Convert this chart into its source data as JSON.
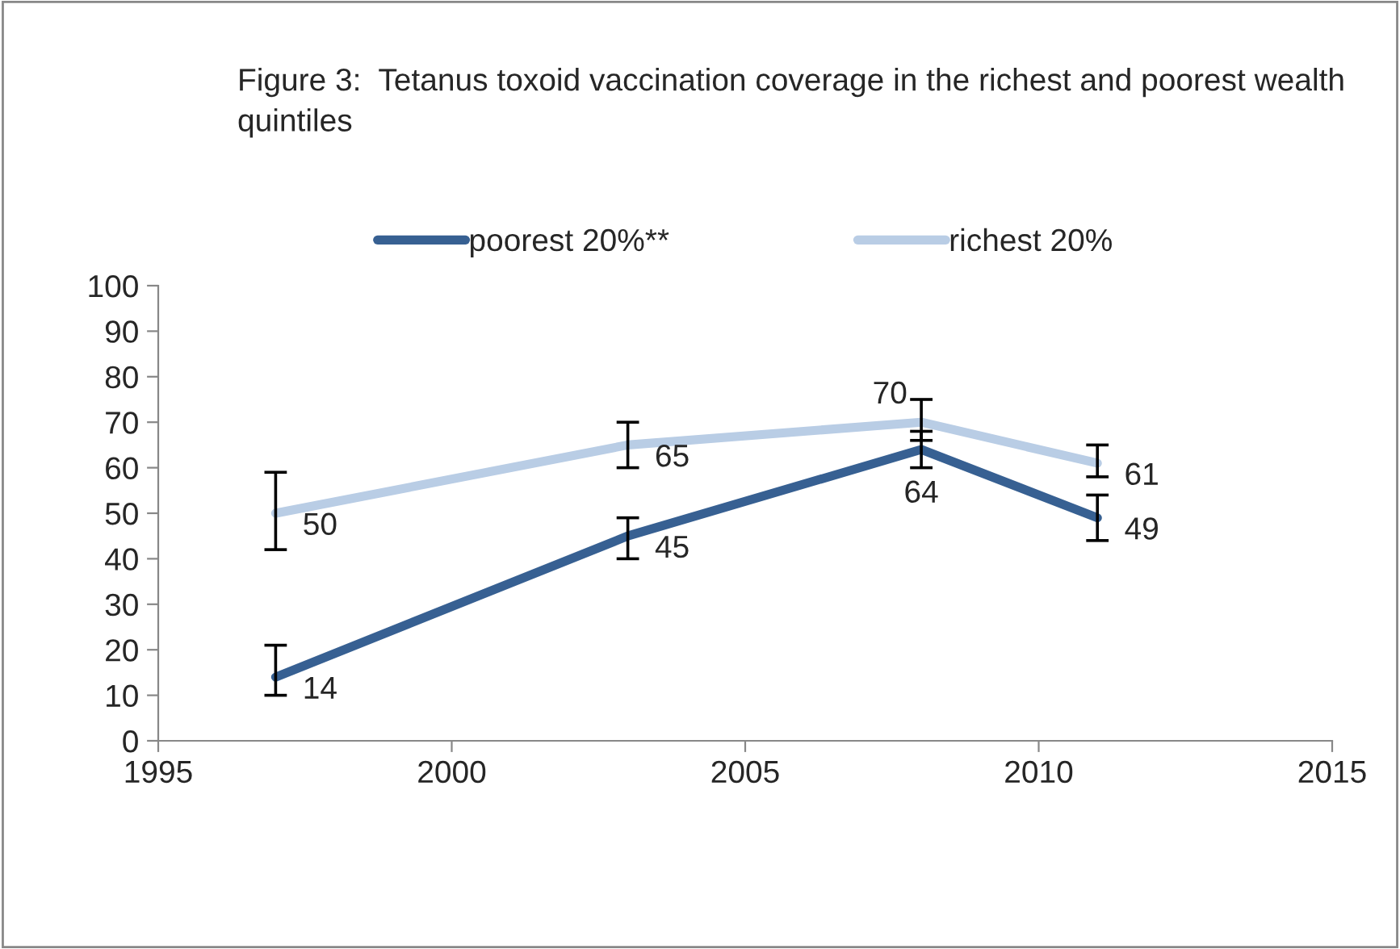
{
  "chart_data": {
    "type": "line",
    "title": "Figure 3:  Tetanus toxoid vaccination coverage in the richest and poorest wealth quintiles",
    "x": [
      1997,
      2003,
      2008,
      2011
    ],
    "series": [
      {
        "name": "poorest 20%**",
        "color": "#376092",
        "values": [
          14,
          45,
          64,
          49
        ],
        "errors": [
          [
            10,
            21
          ],
          [
            40,
            49
          ],
          [
            60,
            68
          ],
          [
            44,
            54
          ]
        ]
      },
      {
        "name": "richest 20%",
        "color": "#b9cde5",
        "values": [
          50,
          65,
          70,
          61
        ],
        "errors": [
          [
            42,
            59
          ],
          [
            60,
            70
          ],
          [
            66,
            75
          ],
          [
            58,
            65
          ]
        ]
      }
    ],
    "xlim": [
      1995,
      2015
    ],
    "xticks": [
      1995,
      2000,
      2005,
      2010,
      2015
    ],
    "ylim": [
      0,
      100
    ],
    "yticks": [
      0,
      10,
      20,
      30,
      40,
      50,
      60,
      70,
      80,
      90,
      100
    ],
    "data_labels": true,
    "legend": "top",
    "grid": false,
    "marker": "none",
    "line_style": "solid"
  }
}
